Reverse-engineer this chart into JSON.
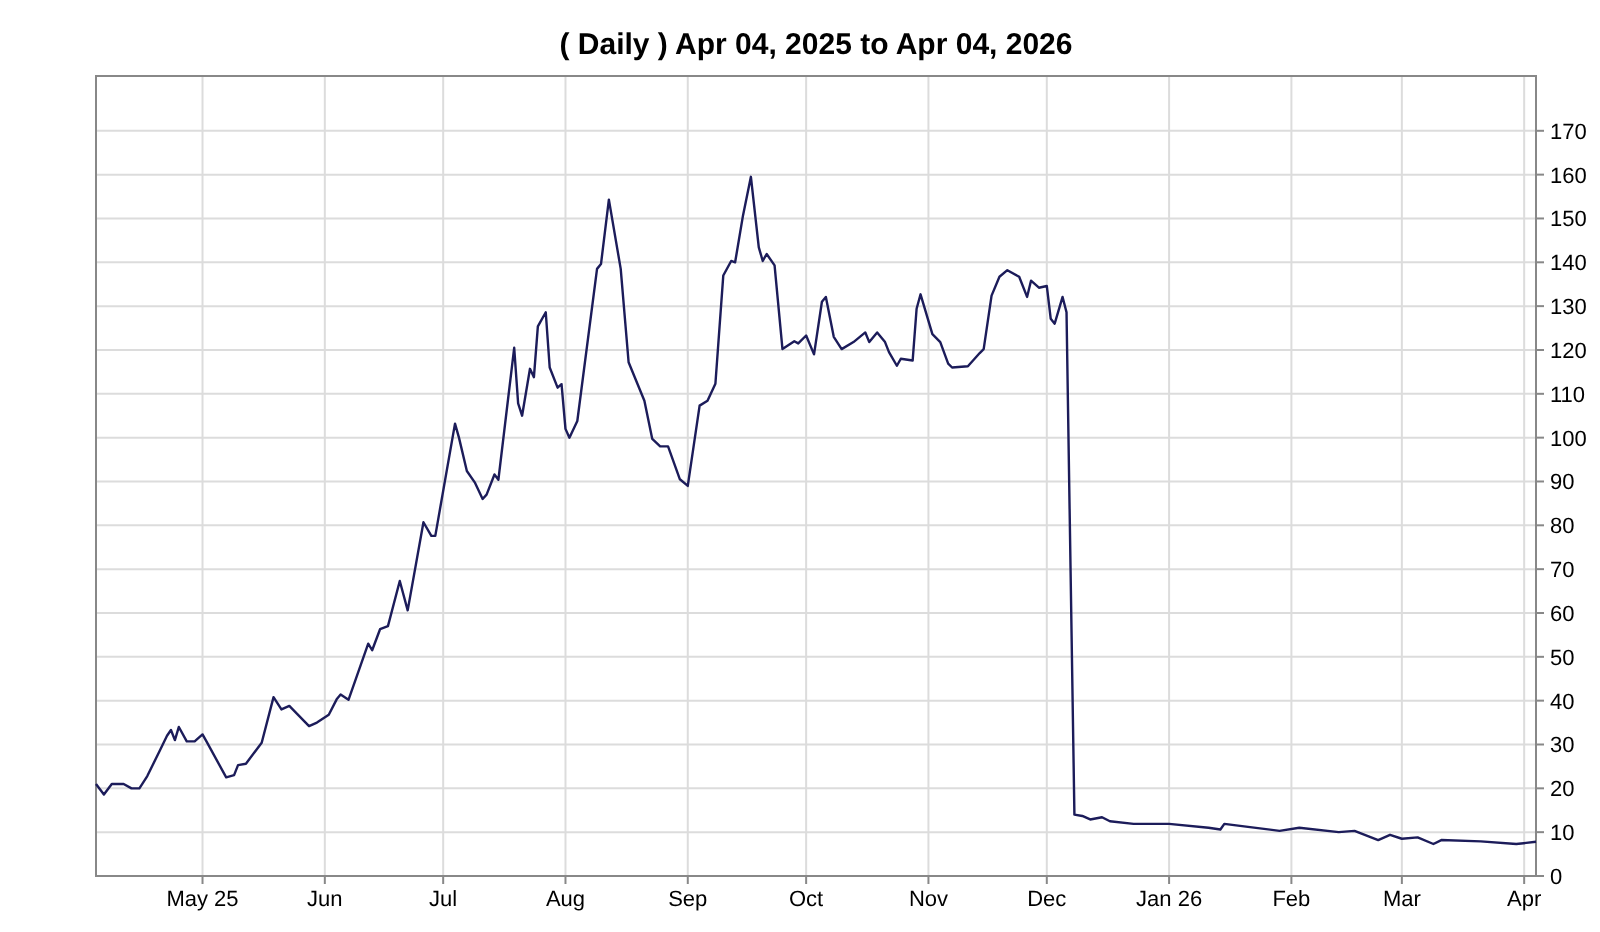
{
  "chart_data": {
    "type": "line",
    "title": "( Daily ) Apr 04, 2025 to Apr 04, 2026",
    "xlim": [
      "2025-04-04",
      "2026-04-04"
    ],
    "xticks": [
      {
        "value": "2025-05-01",
        "label": "May 25"
      },
      {
        "value": "2025-06-01",
        "label": "Jun"
      },
      {
        "value": "2025-07-01",
        "label": "Jul"
      },
      {
        "value": "2025-08-01",
        "label": "Aug"
      },
      {
        "value": "2025-09-01",
        "label": "Sep"
      },
      {
        "value": "2025-10-01",
        "label": "Oct"
      },
      {
        "value": "2025-11-01",
        "label": "Nov"
      },
      {
        "value": "2025-12-01",
        "label": "Dec"
      },
      {
        "value": "2026-01-01",
        "label": "Jan 26"
      },
      {
        "value": "2026-02-01",
        "label": "Feb"
      },
      {
        "value": "2026-03-01",
        "label": "Mar"
      },
      {
        "value": "2026-04-01",
        "label": "Apr"
      }
    ],
    "ylim": [
      0,
      182.5
    ],
    "yticks": [
      0,
      10,
      20,
      30,
      40,
      50,
      60,
      70,
      80,
      90,
      100,
      110,
      120,
      130,
      140,
      150,
      160,
      170
    ],
    "grid": true,
    "marker": "none",
    "line_style": "solid",
    "series": [
      {
        "color": "#1c1c5a",
        "x": [
          "2025-04-04",
          "2025-04-06",
          "2025-04-08",
          "2025-04-11",
          "2025-04-13",
          "2025-04-15",
          "2025-04-17",
          "2025-04-20",
          "2025-04-22",
          "2025-04-23",
          "2025-04-24",
          "2025-04-25",
          "2025-04-27",
          "2025-04-29",
          "2025-05-01",
          "2025-05-02",
          "2025-05-07",
          "2025-05-09",
          "2025-05-10",
          "2025-05-12",
          "2025-05-16",
          "2025-05-19",
          "2025-05-21",
          "2025-05-23",
          "2025-05-28",
          "2025-05-30",
          "2025-06-02",
          "2025-06-04",
          "2025-06-05",
          "2025-06-07",
          "2025-06-12",
          "2025-06-13",
          "2025-06-15",
          "2025-06-17",
          "2025-06-20",
          "2025-06-22",
          "2025-06-26",
          "2025-06-28",
          "2025-06-29",
          "2025-07-04",
          "2025-07-05",
          "2025-07-07",
          "2025-07-09",
          "2025-07-11",
          "2025-07-12",
          "2025-07-14",
          "2025-07-15",
          "2025-07-19",
          "2025-07-20",
          "2025-07-21",
          "2025-07-23",
          "2025-07-24",
          "2025-07-25",
          "2025-07-27",
          "2025-07-28",
          "2025-07-30",
          "2025-07-31",
          "2025-08-01",
          "2025-08-02",
          "2025-08-04",
          "2025-08-09",
          "2025-08-10",
          "2025-08-12",
          "2025-08-15",
          "2025-08-17",
          "2025-08-21",
          "2025-08-23",
          "2025-08-25",
          "2025-08-27",
          "2025-08-30",
          "2025-09-01",
          "2025-09-04",
          "2025-09-06",
          "2025-09-08",
          "2025-09-10",
          "2025-09-12",
          "2025-09-13",
          "2025-09-15",
          "2025-09-17",
          "2025-09-19",
          "2025-09-20",
          "2025-09-21",
          "2025-09-23",
          "2025-09-25",
          "2025-09-28",
          "2025-09-29",
          "2025-10-01",
          "2025-10-03",
          "2025-10-05",
          "2025-10-06",
          "2025-10-08",
          "2025-10-10",
          "2025-10-13",
          "2025-10-16",
          "2025-10-17",
          "2025-10-19",
          "2025-10-21",
          "2025-10-22",
          "2025-10-24",
          "2025-10-25",
          "2025-10-28",
          "2025-10-29",
          "2025-10-30",
          "2025-11-02",
          "2025-11-04",
          "2025-11-06",
          "2025-11-07",
          "2025-11-11",
          "2025-11-14",
          "2025-11-15",
          "2025-11-17",
          "2025-11-19",
          "2025-11-21",
          "2025-11-24",
          "2025-11-26",
          "2025-11-27",
          "2025-11-29",
          "2025-12-01",
          "2025-12-02",
          "2025-12-03",
          "2025-12-05",
          "2025-12-06",
          "2025-12-08",
          "2025-12-10",
          "2025-12-12",
          "2025-12-15",
          "2025-12-17",
          "2025-12-23",
          "2026-01-01",
          "2026-01-11",
          "2026-01-14",
          "2026-01-15",
          "2026-01-21",
          "2026-01-29",
          "2026-02-03",
          "2026-02-13",
          "2026-02-17",
          "2026-02-23",
          "2026-02-26",
          "2026-03-01",
          "2026-03-05",
          "2026-03-09",
          "2026-03-11",
          "2026-03-21",
          "2026-03-30",
          "2026-04-04"
        ],
        "values": [
          21,
          18.6,
          21,
          21,
          20,
          20,
          22.8,
          28.3,
          32,
          33.3,
          31,
          34,
          30.7,
          30.7,
          32.3,
          30.7,
          22.5,
          23,
          25.3,
          25.6,
          30.4,
          40.8,
          38,
          38.8,
          34.2,
          35,
          36.8,
          40.3,
          41.4,
          40.2,
          53,
          51.5,
          56.3,
          57,
          67.3,
          60.6,
          80.7,
          77.6,
          77.6,
          103.2,
          100,
          92.4,
          89.8,
          86,
          87,
          91.6,
          90.4,
          120.5,
          107.8,
          105,
          115.7,
          113.8,
          125.4,
          128.6,
          116,
          111.4,
          112.2,
          102,
          100,
          103.8,
          138.5,
          139.6,
          154.3,
          138.5,
          117.2,
          108.4,
          99.7,
          98,
          98,
          90.5,
          89,
          107.3,
          108.4,
          112.3,
          137,
          140.3,
          140,
          150.7,
          159.5,
          143.4,
          140.3,
          141.9,
          139.3,
          120.2,
          122,
          121.5,
          123.3,
          119,
          131,
          132.1,
          123,
          120.2,
          121.8,
          124,
          121.8,
          124,
          121.8,
          119.5,
          116.4,
          118,
          117.6,
          129.4,
          132.7,
          123.6,
          121.8,
          116.9,
          116,
          116.3,
          119.3,
          120.2,
          132.4,
          136.7,
          138.2,
          136.7,
          132.1,
          135.8,
          134.2,
          134.6,
          127.1,
          126,
          132.1,
          128.6,
          14,
          13.7,
          12.9,
          13.4,
          12.5,
          11.9,
          11.9,
          11,
          10.6,
          11.9,
          11.2,
          10.3,
          11,
          10,
          10.3,
          8.2,
          9.4,
          8.5,
          8.8,
          7.3,
          8.2,
          7.9,
          7.3,
          7.8
        ]
      }
    ]
  }
}
